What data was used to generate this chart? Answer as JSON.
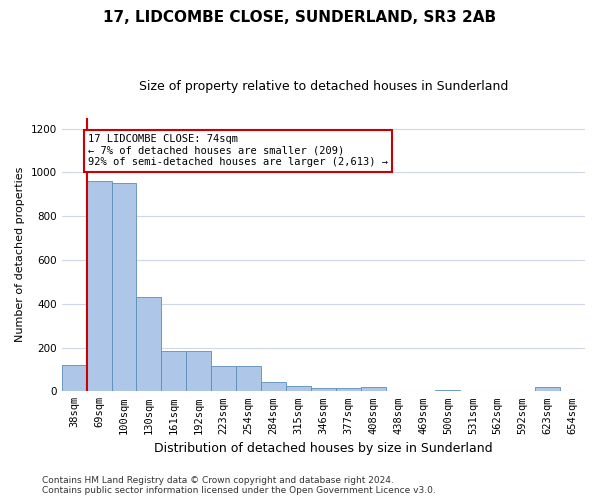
{
  "title": "17, LIDCOMBE CLOSE, SUNDERLAND, SR3 2AB",
  "subtitle": "Size of property relative to detached houses in Sunderland",
  "xlabel": "Distribution of detached houses by size in Sunderland",
  "ylabel": "Number of detached properties",
  "categories": [
    "38sqm",
    "69sqm",
    "100sqm",
    "130sqm",
    "161sqm",
    "192sqm",
    "223sqm",
    "254sqm",
    "284sqm",
    "315sqm",
    "346sqm",
    "377sqm",
    "408sqm",
    "438sqm",
    "469sqm",
    "500sqm",
    "531sqm",
    "562sqm",
    "592sqm",
    "623sqm",
    "654sqm"
  ],
  "values": [
    120,
    960,
    950,
    430,
    185,
    183,
    115,
    115,
    42,
    22,
    17,
    14,
    20,
    0,
    0,
    8,
    0,
    0,
    0,
    18,
    0
  ],
  "bar_color": "#aec6e8",
  "bar_edge_color": "#5b8db8",
  "grid_color": "#d0d8e8",
  "annotation_text_line1": "17 LIDCOMBE CLOSE: 74sqm",
  "annotation_text_line2": "← 7% of detached houses are smaller (209)",
  "annotation_text_line3": "92% of semi-detached houses are larger (2,613) →",
  "annotation_box_color": "#ffffff",
  "annotation_box_edge_color": "#cc0000",
  "annotation_line_color": "#cc0000",
  "ylim": [
    0,
    1250
  ],
  "yticks": [
    0,
    200,
    400,
    600,
    800,
    1000,
    1200
  ],
  "footer_line1": "Contains HM Land Registry data © Crown copyright and database right 2024.",
  "footer_line2": "Contains public sector information licensed under the Open Government Licence v3.0.",
  "background_color": "#ffffff",
  "plot_background_color": "#ffffff",
  "title_fontsize": 11,
  "subtitle_fontsize": 9,
  "ylabel_fontsize": 8,
  "xlabel_fontsize": 9,
  "tick_fontsize": 7.5,
  "footer_fontsize": 6.5,
  "annotation_fontsize": 7.5
}
